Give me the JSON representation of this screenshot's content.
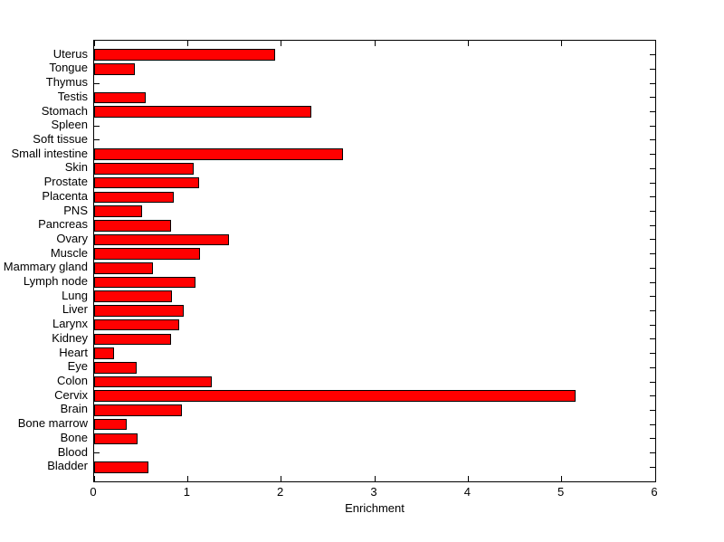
{
  "chart_data": {
    "type": "bar",
    "orientation": "horizontal",
    "title": "",
    "xlabel": "Enrichment",
    "ylabel": "",
    "xlim": [
      0,
      6
    ],
    "x_ticks": [
      0,
      1,
      2,
      3,
      4,
      5,
      6
    ],
    "grid": false,
    "legend": null,
    "bar_color": "#FF0000",
    "bar_edge_color": "#000000",
    "axis_color": "#000000",
    "background_color": "#FFFFFF",
    "categories": [
      "Uterus",
      "Tongue",
      "Thymus",
      "Testis",
      "Stomach",
      "Spleen",
      "Soft tissue",
      "Small intestine",
      "Skin",
      "Prostate",
      "Placenta",
      "PNS",
      "Pancreas",
      "Ovary",
      "Muscle",
      "Mammary gland",
      "Lymph node",
      "Lung",
      "Liver",
      "Larynx",
      "Kidney",
      "Heart",
      "Eye",
      "Colon",
      "Cervix",
      "Brain",
      "Bone marrow",
      "Bone",
      "Blood",
      "Bladder"
    ],
    "values": [
      1.94,
      0.44,
      0,
      0.55,
      2.32,
      0,
      0,
      2.66,
      1.06,
      1.12,
      0.85,
      0.51,
      0.82,
      1.44,
      1.13,
      0.63,
      1.08,
      0.83,
      0.96,
      0.91,
      0.82,
      0.21,
      0.45,
      1.26,
      5.15,
      0.94,
      0.35,
      0.46,
      0,
      0.58
    ]
  }
}
